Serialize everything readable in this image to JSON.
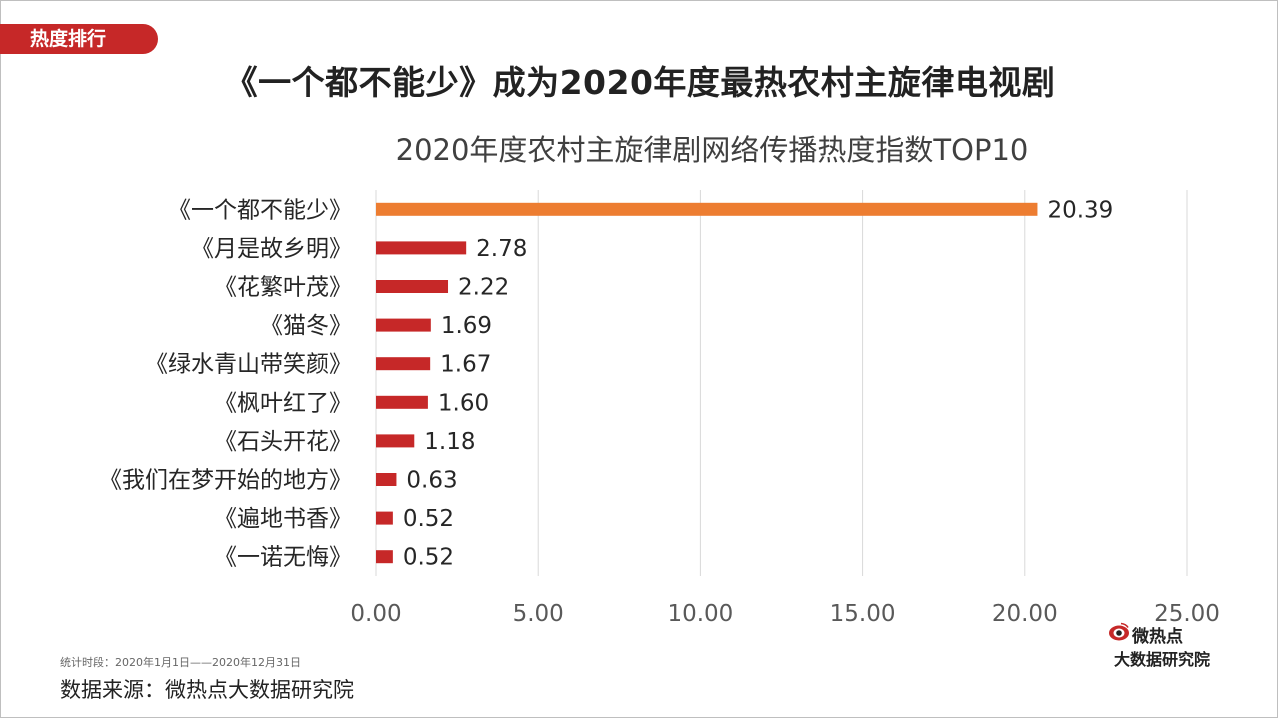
{
  "tag": "热度排行",
  "headline": "《一个都不能少》成为2020年度最热农村主旋律电视剧",
  "note": "统计时段：2020年1月1日——2020年12月31日",
  "source": "数据来源：微热点大数据研究院",
  "logo": {
    "top": "微热点",
    "bottom": "大数据研究院",
    "icon": "eye-icon"
  },
  "colors": {
    "highlight": "#ed7d31",
    "bar": "#c62828",
    "tag": "#c62828",
    "grid": "#d9d9d9"
  },
  "chart_data": {
    "type": "bar",
    "orientation": "horizontal",
    "title": "2020年度农村主旋律剧网络传播热度指数TOP10",
    "categories": [
      "《一个都不能少》",
      "《月是故乡明》",
      "《花繁叶茂》",
      "《猫冬》",
      "《绿水青山带笑颜》",
      "《枫叶红了》",
      "《石头开花》",
      "《我们在梦开始的地方》",
      "《遍地书香》",
      "《一诺无悔》"
    ],
    "values": [
      20.39,
      2.78,
      2.22,
      1.69,
      1.67,
      1.6,
      1.18,
      0.63,
      0.52,
      0.52
    ],
    "value_labels": [
      "20.39",
      "2.78",
      "2.22",
      "1.69",
      "1.67",
      "1.60",
      "1.18",
      "0.63",
      "0.52",
      "0.52"
    ],
    "xlim": [
      0,
      25
    ],
    "ticks": [
      0,
      5,
      10,
      15,
      20,
      25
    ],
    "tick_labels": [
      "0.00",
      "5.00",
      "10.00",
      "15.00",
      "20.00",
      "25.00"
    ],
    "grid": true,
    "legend": "none"
  }
}
